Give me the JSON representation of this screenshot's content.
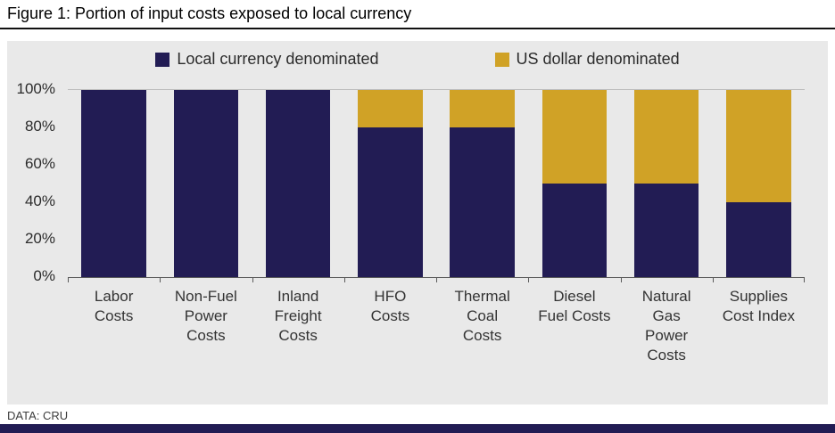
{
  "header": {
    "title": "Figure 1: Portion of input costs exposed to local currency"
  },
  "footer": {
    "source": "DATA: CRU"
  },
  "colors": {
    "local": "#221c54",
    "usd": "#d0a226",
    "panel": "#e9e9e9"
  },
  "chart_data": {
    "type": "bar",
    "stacked": true,
    "title": "Figure 1: Portion of input costs exposed to local currency",
    "categories": [
      "Labor Costs",
      "Non-Fuel Power Costs",
      "Inland Freight Costs",
      "HFO Costs",
      "Thermal Coal Costs",
      "Diesel Fuel Costs",
      "Natural Gas Power Costs",
      "Supplies Cost Index"
    ],
    "category_label_lines": [
      [
        "Labor",
        "Costs"
      ],
      [
        "Non-Fuel",
        "Power",
        "Costs"
      ],
      [
        "Inland",
        "Freight",
        "Costs"
      ],
      [
        "HFO",
        "Costs"
      ],
      [
        "Thermal",
        "Coal",
        "Costs"
      ],
      [
        "Diesel",
        "Fuel Costs"
      ],
      [
        "Natural",
        "Gas",
        "Power",
        "Costs"
      ],
      [
        "Supplies",
        "Cost Index"
      ]
    ],
    "series": [
      {
        "name": "Local currency denominated",
        "color_key": "local",
        "values": [
          100,
          100,
          100,
          80,
          80,
          50,
          50,
          40
        ]
      },
      {
        "name": "US dollar denominated",
        "color_key": "usd",
        "values": [
          0,
          0,
          0,
          20,
          20,
          50,
          50,
          60
        ]
      }
    ],
    "xlabel": "",
    "ylabel": "",
    "ylim": [
      0,
      100
    ],
    "yticks": [
      "100%",
      "80%",
      "60%",
      "40%",
      "20%",
      "0%"
    ],
    "grid": false,
    "legend_position": "top"
  }
}
